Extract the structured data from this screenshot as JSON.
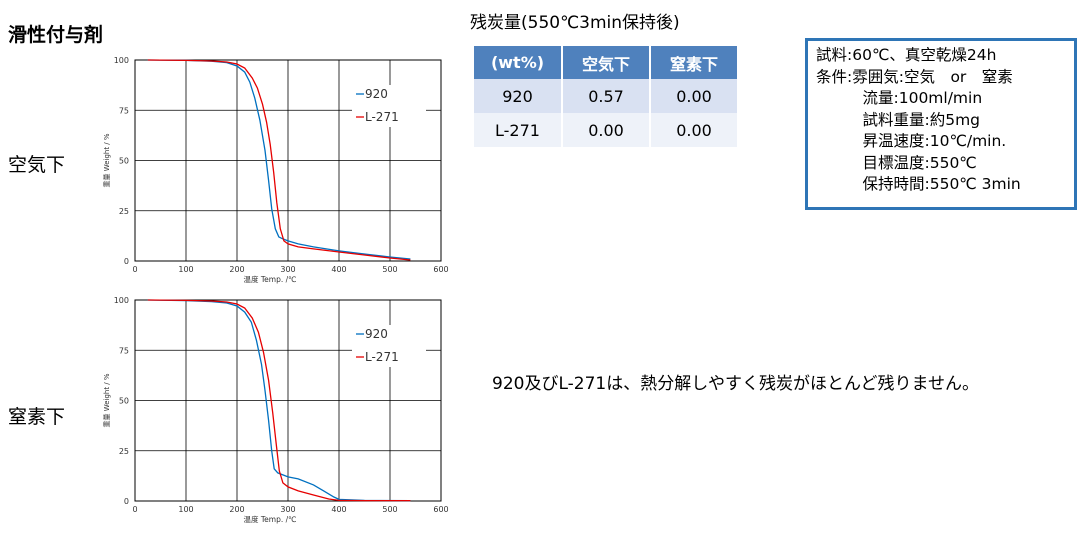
{
  "title": "滑性付与剤",
  "row_labels": [
    "空気下",
    "窒素下"
  ],
  "table": {
    "title": "残炭量(550℃3min保持後)",
    "headers": [
      "(wt%)",
      "空気下",
      "窒素下"
    ],
    "rows": [
      [
        "920",
        "0.57",
        "0.00"
      ],
      [
        "L-271",
        "0.00",
        "0.00"
      ]
    ],
    "header_color": "#4f81bd"
  },
  "conditions": [
    "試料:60℃、真空乾燥24h",
    "条件:雰囲気:空気　or　窒素",
    "　　　流量:100ml/min",
    "　　　試料重量:約5mg",
    "　　　昇温速度:10℃/min.",
    "　　　目標温度:550℃",
    "　　　保持時間:550℃ 3min"
  ],
  "note": "920及びL-271は、熱分解しやすく残炭がほとんど残りません。",
  "chart_data": [
    {
      "type": "line",
      "title": "",
      "xlabel": "温度 Temp. /℃",
      "ylabel": "重量 Weight / %",
      "xlim": [
        0,
        600
      ],
      "ylim": [
        0,
        100
      ],
      "xticks": [
        "0",
        "100",
        "200",
        "300",
        "400",
        "500",
        "600"
      ],
      "yticks": [
        "0",
        "25",
        "50",
        "75",
        "100"
      ],
      "grid": true,
      "legend_position": "right",
      "series": [
        {
          "name": "920",
          "color": "#0070c0",
          "x": [
            25,
            100,
            150,
            180,
            200,
            215,
            225,
            235,
            245,
            255,
            262,
            268,
            275,
            282,
            290,
            300,
            320,
            350,
            400,
            450,
            500,
            540
          ],
          "y": [
            100,
            99.8,
            99.4,
            98.7,
            97,
            94,
            89,
            81,
            70,
            55,
            40,
            26,
            16,
            12,
            11,
            10,
            8.5,
            7,
            5,
            3.5,
            2,
            1
          ]
        },
        {
          "name": "L-271",
          "color": "#e60000",
          "x": [
            25,
            100,
            150,
            180,
            200,
            215,
            230,
            240,
            250,
            258,
            265,
            272,
            278,
            285,
            292,
            300,
            320,
            350,
            400,
            450,
            500,
            540
          ],
          "y": [
            100,
            99.8,
            99.5,
            99,
            98,
            96,
            91,
            86,
            78,
            69,
            58,
            44,
            29,
            16,
            10,
            8.5,
            7,
            6,
            4.5,
            3,
            1.5,
            0.5
          ]
        }
      ]
    },
    {
      "type": "line",
      "title": "",
      "xlabel": "温度 Temp. /℃",
      "ylabel": "重量 Weight / %",
      "xlim": [
        0,
        600
      ],
      "ylim": [
        0,
        100
      ],
      "xticks": [
        "0",
        "100",
        "200",
        "300",
        "400",
        "500",
        "600"
      ],
      "yticks": [
        "0",
        "25",
        "50",
        "75",
        "100"
      ],
      "grid": true,
      "legend_position": "right",
      "series": [
        {
          "name": "920",
          "color": "#0070c0",
          "x": [
            25,
            100,
            150,
            180,
            200,
            215,
            228,
            238,
            248,
            255,
            262,
            268,
            273,
            280,
            290,
            300,
            320,
            350,
            370,
            390,
            400,
            450,
            540
          ],
          "y": [
            100,
            99.7,
            99.2,
            98.5,
            97,
            94,
            89,
            80,
            68,
            55,
            40,
            25,
            16,
            14,
            13,
            12,
            11,
            8,
            5,
            2,
            0.8,
            0.3,
            0.2
          ]
        },
        {
          "name": "L-271",
          "color": "#e60000",
          "x": [
            25,
            100,
            150,
            180,
            200,
            215,
            230,
            242,
            252,
            262,
            270,
            277,
            283,
            290,
            300,
            320,
            350,
            380,
            400,
            450,
            540
          ],
          "y": [
            100,
            99.8,
            99.5,
            99,
            98,
            96,
            91,
            84,
            74,
            60,
            44,
            28,
            15,
            9,
            7,
            5,
            3,
            1,
            0.3,
            0.2,
            0.2
          ]
        }
      ]
    }
  ]
}
